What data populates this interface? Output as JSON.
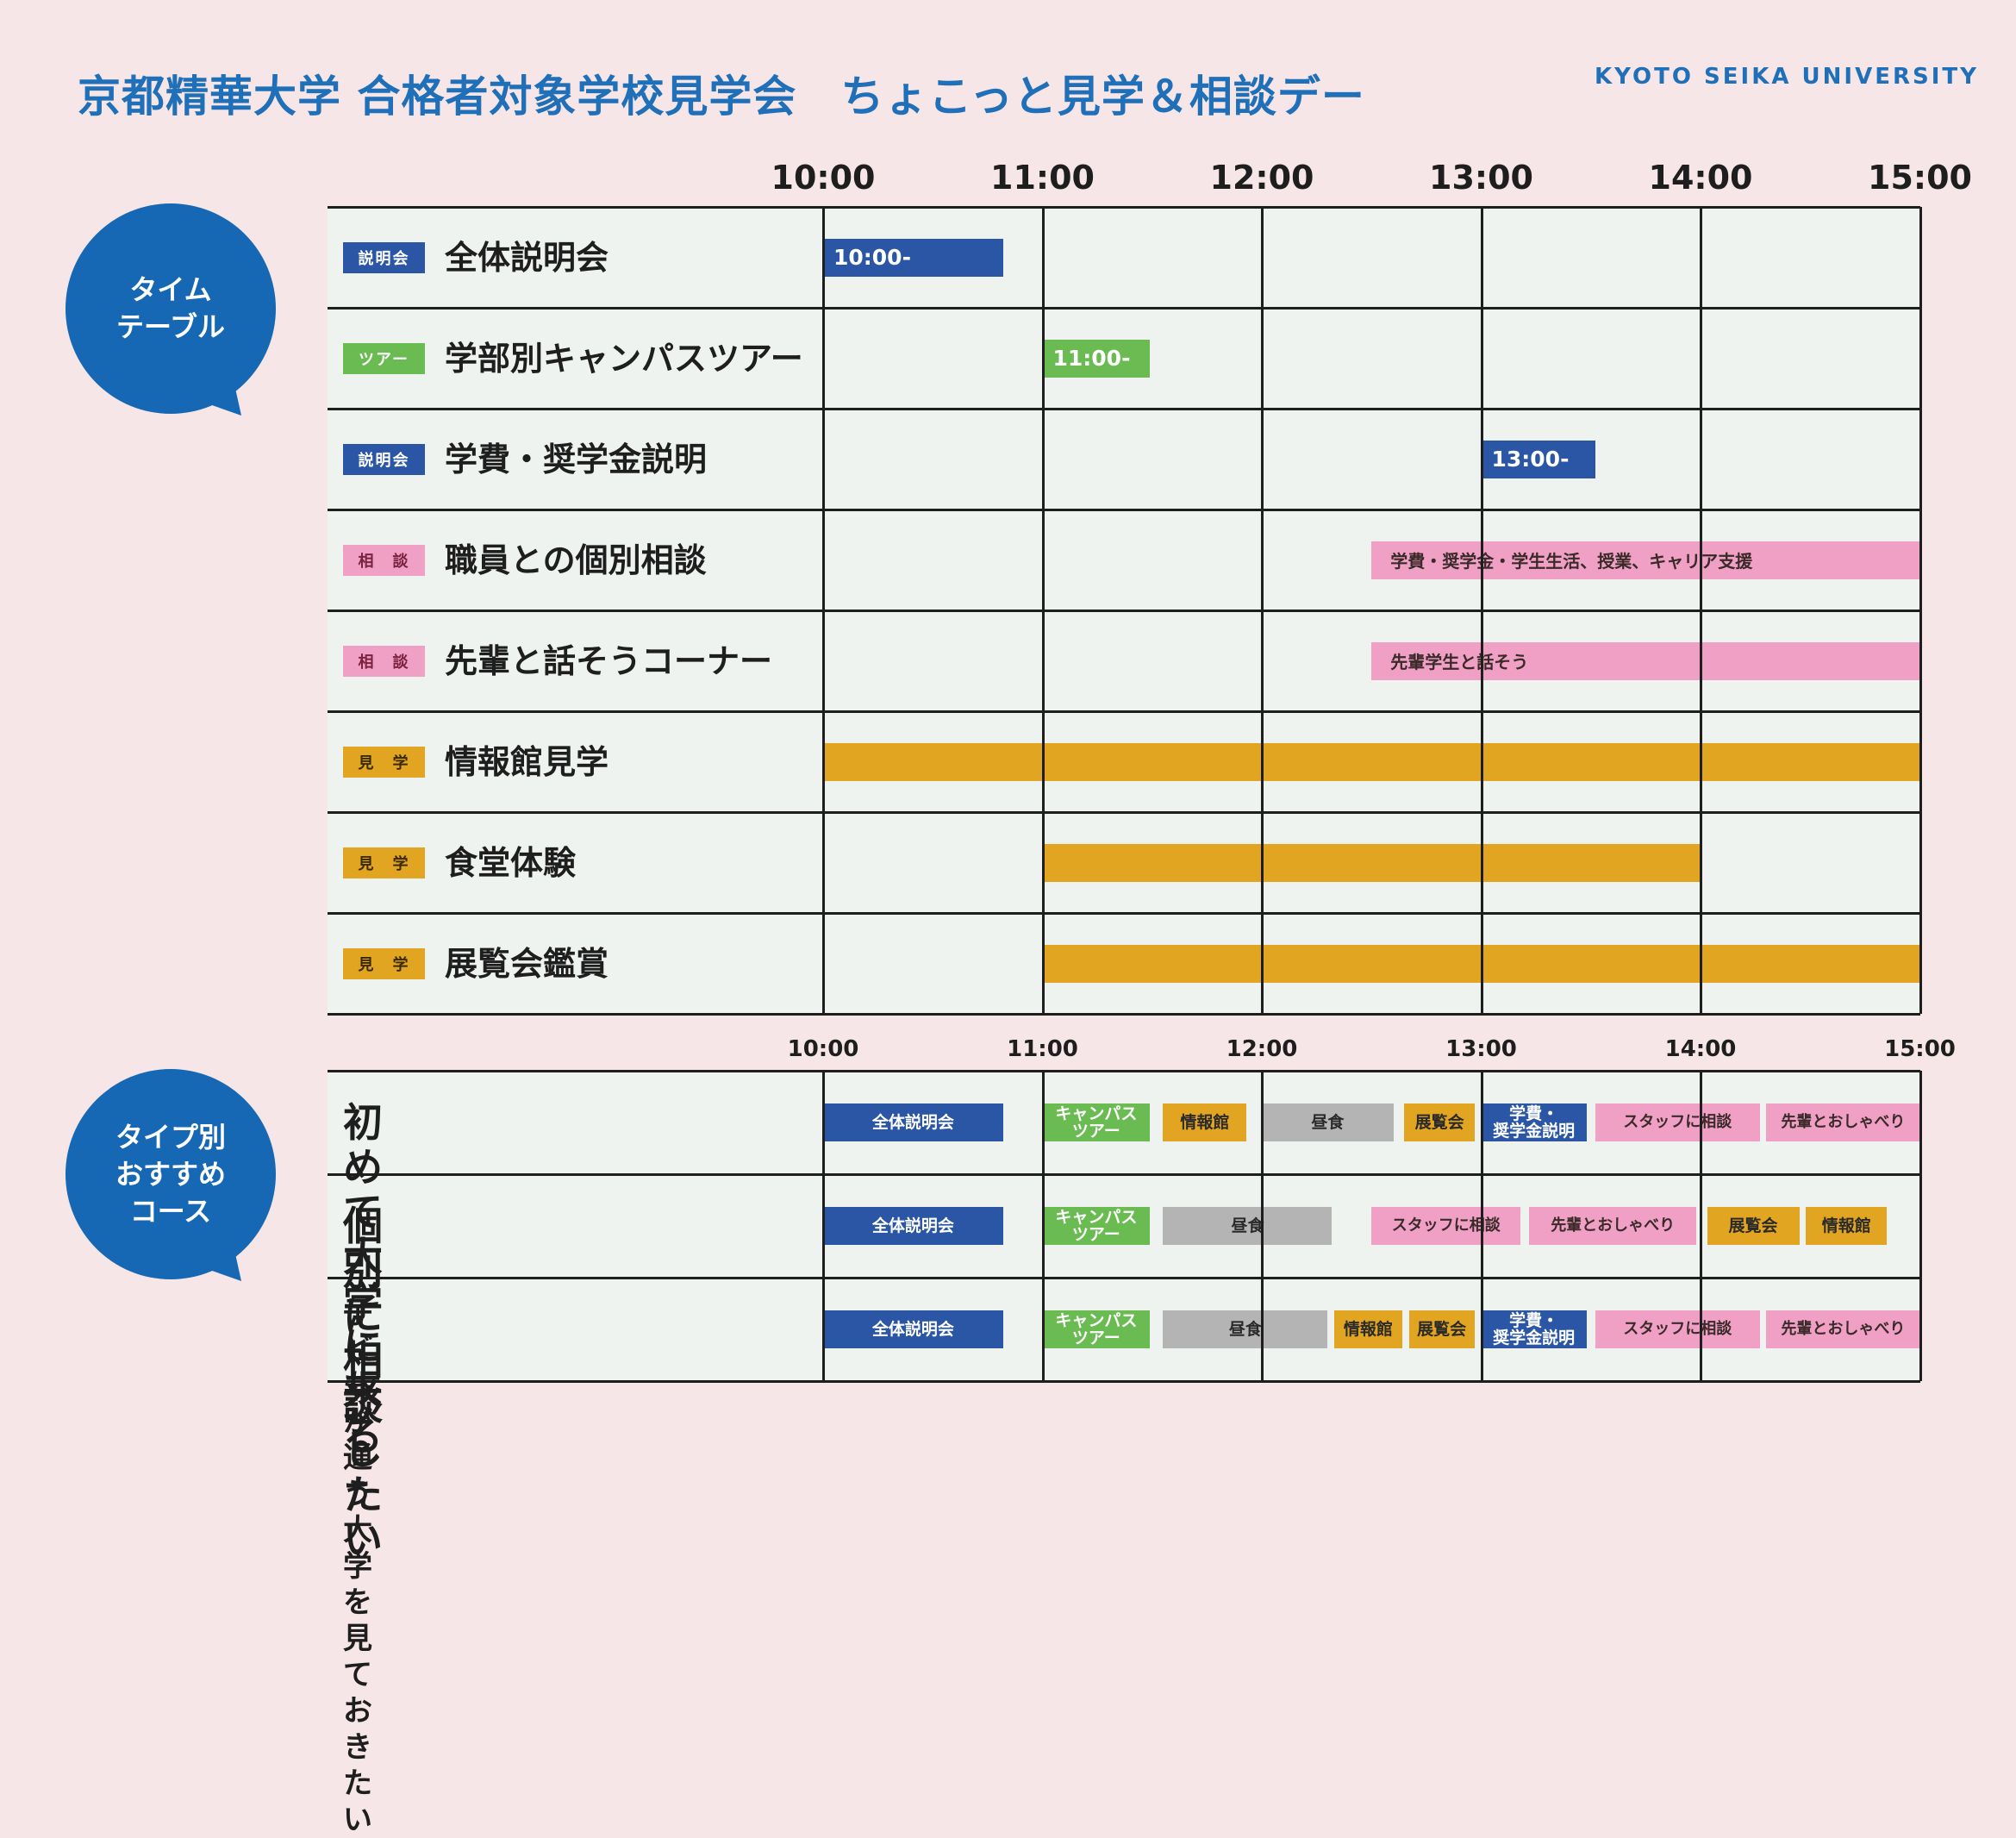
{
  "header": {
    "title": "京都精華大学 合格者対象学校見学会　ちょこっと見学＆相談デー",
    "university": "KYOTO SEIKA UNIVERSITY"
  },
  "bubbles": {
    "timetable": "タイム\nテーブル",
    "courses": "タイプ別\nおすすめ\nコース"
  },
  "colors": {
    "blue": "#2a56a5",
    "green": "#6abb52",
    "pink": "#f0a0c4",
    "orange": "#e2a521",
    "gray": "#b4b4b4",
    "accent": "#1f6fb9",
    "bubble": "#1668b4"
  },
  "timetable": {
    "times": [
      "10:00",
      "11:00",
      "12:00",
      "13:00",
      "14:00",
      "15:00"
    ],
    "rows": [
      {
        "tag": "説明会",
        "tag_color": "blue",
        "label": "全体説明会",
        "bar_start": 10.0,
        "bar_end": 10.82,
        "bar_text": "10:00-",
        "bar_color": "blue"
      },
      {
        "tag": "ツアー",
        "tag_color": "green",
        "label": "学部別キャンパスツアー",
        "bar_start": 11.0,
        "bar_end": 11.49,
        "bar_text": "11:00-",
        "bar_color": "green"
      },
      {
        "tag": "説明会",
        "tag_color": "blue",
        "label": "学費・奨学金説明",
        "bar_start": 13.0,
        "bar_end": 13.52,
        "bar_text": "13:00-",
        "bar_color": "blue"
      },
      {
        "tag": "相　談",
        "tag_color": "pink",
        "label": "職員との個別相談",
        "bar_start": 12.5,
        "bar_end": 15.0,
        "bar_text": "学費・奨学金・学生生活、授業、キャリア支援",
        "bar_color": "pink"
      },
      {
        "tag": "相　談",
        "tag_color": "pink",
        "label": "先輩と話そうコーナー",
        "bar_start": 12.5,
        "bar_end": 15.0,
        "bar_text": "先輩学生と話そう",
        "bar_color": "pink"
      },
      {
        "tag": "見　学",
        "tag_color": "orange",
        "label": "情報館見学",
        "bar_start": 10.0,
        "bar_end": 15.0,
        "bar_text": "",
        "bar_color": "orange"
      },
      {
        "tag": "見　学",
        "tag_color": "orange",
        "label": "食堂体験",
        "bar_start": 11.0,
        "bar_end": 14.0,
        "bar_text": "",
        "bar_color": "orange"
      },
      {
        "tag": "見　学",
        "tag_color": "orange",
        "label": "展覧会鑑賞",
        "bar_start": 11.0,
        "bar_end": 15.0,
        "bar_text": "",
        "bar_color": "orange"
      }
    ]
  },
  "courses": {
    "times": [
      "10:00",
      "11:00",
      "12:00",
      "13:00",
      "14:00",
      "15:00"
    ],
    "rows": [
      {
        "label": "初めて大学に来る",
        "items": [
          {
            "text": "全体説明会",
            "start": 10.0,
            "end": 10.82,
            "color": "blue"
          },
          {
            "text": "キャンパス\nツアー",
            "start": 11.0,
            "end": 11.49,
            "color": "green"
          },
          {
            "text": "情報館",
            "start": 11.55,
            "end": 11.93,
            "color": "orange"
          },
          {
            "text": "昼食",
            "start": 12.0,
            "end": 12.6,
            "color": "gray"
          },
          {
            "text": "展覧会",
            "start": 12.65,
            "end": 12.97,
            "color": "orange"
          },
          {
            "text": "学費・\n奨学金説明",
            "start": 13.0,
            "end": 13.48,
            "color": "blue"
          },
          {
            "text": "スタッフに相談",
            "start": 13.52,
            "end": 14.27,
            "color": "pink"
          },
          {
            "text": "先輩とおしゃべり",
            "start": 14.3,
            "end": 15.0,
            "color": "pink"
          }
        ]
      },
      {
        "label": "個別に相談したい",
        "items": [
          {
            "text": "全体説明会",
            "start": 10.0,
            "end": 10.82,
            "color": "blue"
          },
          {
            "text": "キャンパス\nツアー",
            "start": 11.0,
            "end": 11.49,
            "color": "green"
          },
          {
            "text": "昼食",
            "start": 11.55,
            "end": 12.32,
            "color": "gray"
          },
          {
            "text": "スタッフに相談",
            "start": 12.5,
            "end": 13.18,
            "color": "pink"
          },
          {
            "text": "先輩とおしゃべり",
            "start": 13.22,
            "end": 13.98,
            "color": "pink"
          },
          {
            "text": "展覧会",
            "start": 14.03,
            "end": 14.45,
            "color": "orange"
          },
          {
            "text": "情報館",
            "start": 14.48,
            "end": 14.85,
            "color": "orange"
          }
        ]
      },
      {
        "label": "子どもが通う大学を\n見ておきたい",
        "items": [
          {
            "text": "全体説明会",
            "start": 10.0,
            "end": 10.82,
            "color": "blue"
          },
          {
            "text": "キャンパス\nツアー",
            "start": 11.0,
            "end": 11.49,
            "color": "green"
          },
          {
            "text": "昼食",
            "start": 11.55,
            "end": 12.3,
            "color": "gray"
          },
          {
            "text": "情報館",
            "start": 12.33,
            "end": 12.64,
            "color": "orange"
          },
          {
            "text": "展覧会",
            "start": 12.67,
            "end": 12.97,
            "color": "orange"
          },
          {
            "text": "学費・\n奨学金説明",
            "start": 13.0,
            "end": 13.48,
            "color": "blue"
          },
          {
            "text": "スタッフに相談",
            "start": 13.52,
            "end": 14.27,
            "color": "pink"
          },
          {
            "text": "先輩とおしゃべり",
            "start": 14.3,
            "end": 15.0,
            "color": "pink"
          }
        ]
      }
    ]
  }
}
